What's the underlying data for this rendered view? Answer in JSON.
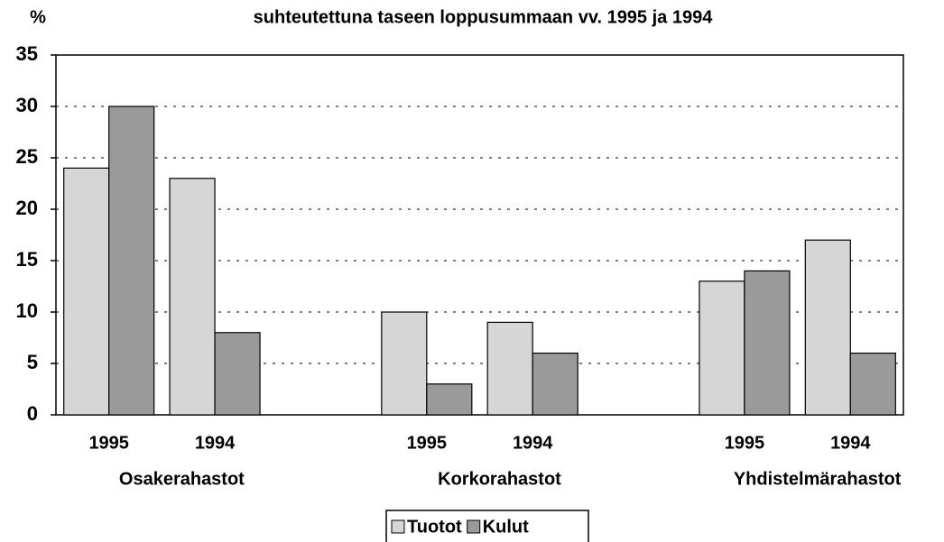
{
  "chart_data": {
    "type": "bar",
    "title": "suhteutettuna taseen loppusummaan vv. 1995 ja 1994",
    "y_label": "%",
    "categories": [
      "1995",
      "1994",
      null,
      "1995",
      "1994",
      null,
      "1995",
      "1994"
    ],
    "groups": [
      "Osakerahastot",
      "Korkorahastot",
      "Yhdistelmärahastot"
    ],
    "series": [
      {
        "name": "Tuotot",
        "color": "#d6d6d6",
        "values": [
          24,
          23,
          null,
          10,
          9,
          null,
          13,
          17
        ]
      },
      {
        "name": "Kulut",
        "color": "#9a9a9a",
        "values": [
          30,
          8,
          null,
          3,
          6,
          null,
          14,
          6
        ]
      }
    ],
    "ylim": [
      0,
      35
    ],
    "yticks": [
      0,
      5,
      10,
      15,
      20,
      25,
      30,
      35
    ],
    "grid": true,
    "legend": "bottom"
  }
}
